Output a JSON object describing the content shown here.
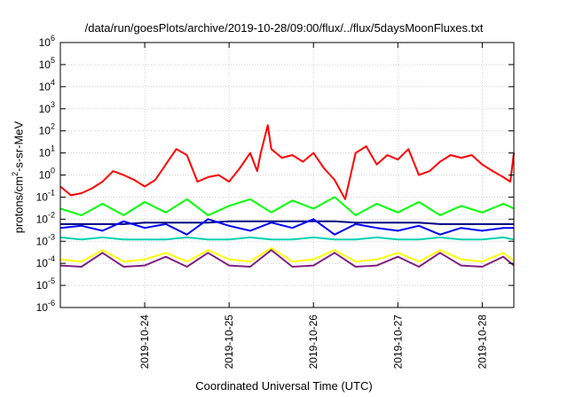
{
  "chart_data": {
    "type": "line",
    "title": "/data/run/goesPlots/archive/2019-10-28/09:00/flux/../flux/5daysMoonFluxes.txt",
    "xlabel": "Coordinated Universal Time (UTC)",
    "ylabel_parts": {
      "pre": "protons/cm",
      "sup": "2",
      "post": "-s-sr-MeV"
    },
    "y_scale": "log",
    "ylim": [
      1e-06,
      1000000.0
    ],
    "y_ticks": [
      {
        "base": "10",
        "exp": "-6"
      },
      {
        "base": "10",
        "exp": "-5"
      },
      {
        "base": "10",
        "exp": "-4"
      },
      {
        "base": "10",
        "exp": "-3"
      },
      {
        "base": "10",
        "exp": "-2"
      },
      {
        "base": "10",
        "exp": "-1"
      },
      {
        "base": "10",
        "exp": "0"
      },
      {
        "base": "10",
        "exp": "1"
      },
      {
        "base": "10",
        "exp": "2"
      },
      {
        "base": "10",
        "exp": "3"
      },
      {
        "base": "10",
        "exp": "4"
      },
      {
        "base": "10",
        "exp": "5"
      },
      {
        "base": "10",
        "exp": "6"
      }
    ],
    "xlim": [
      "2019-10-23T00:00",
      "2019-10-28T09:00"
    ],
    "x_ticks": [
      "2019-10-24",
      "2019-10-25",
      "2019-10-26",
      "2019-10-27",
      "2019-10-28"
    ],
    "grid": true,
    "legend": "none",
    "series": [
      {
        "color": "#ff0000",
        "x": [
          "2019-10-23T00:00",
          "2019-10-23T03:00",
          "2019-10-23T06:00",
          "2019-10-23T09:00",
          "2019-10-23T12:00",
          "2019-10-23T15:00",
          "2019-10-23T18:00",
          "2019-10-23T21:00",
          "2019-10-24T00:00",
          "2019-10-24T03:00",
          "2019-10-24T06:00",
          "2019-10-24T09:00",
          "2019-10-24T12:00",
          "2019-10-24T15:00",
          "2019-10-24T18:00",
          "2019-10-24T21:00",
          "2019-10-25T00:00",
          "2019-10-25T03:00",
          "2019-10-25T06:00",
          "2019-10-25T08:00",
          "2019-10-25T09:00",
          "2019-10-25T11:00",
          "2019-10-25T12:00",
          "2019-10-25T15:00",
          "2019-10-25T18:00",
          "2019-10-25T21:00",
          "2019-10-26T00:00",
          "2019-10-26T03:00",
          "2019-10-26T06:00",
          "2019-10-26T09:00",
          "2019-10-26T12:00",
          "2019-10-26T15:00",
          "2019-10-26T18:00",
          "2019-10-26T21:00",
          "2019-10-27T00:00",
          "2019-10-27T03:00",
          "2019-10-27T06:00",
          "2019-10-27T09:00",
          "2019-10-27T12:00",
          "2019-10-27T15:00",
          "2019-10-27T18:00",
          "2019-10-27T21:00",
          "2019-10-28T00:00",
          "2019-10-28T03:00",
          "2019-10-28T06:00",
          "2019-10-28T08:00",
          "2019-10-28T09:00"
        ],
        "y": [
          0.3,
          0.12,
          0.15,
          0.25,
          0.5,
          1.5,
          1.0,
          0.6,
          0.3,
          0.6,
          3,
          15,
          8,
          0.5,
          0.8,
          1,
          0.5,
          2,
          10,
          1.5,
          10,
          180,
          15,
          6,
          8,
          4,
          10,
          2,
          0.6,
          0.08,
          10,
          20,
          3,
          8,
          5,
          15,
          1,
          1.5,
          4,
          8,
          6,
          8,
          3,
          1.5,
          0.8,
          0.5,
          10
        ]
      },
      {
        "color": "#00ff00",
        "x": [
          "2019-10-23T00:00",
          "2019-10-23T06:00",
          "2019-10-23T12:00",
          "2019-10-23T18:00",
          "2019-10-24T00:00",
          "2019-10-24T06:00",
          "2019-10-24T12:00",
          "2019-10-24T18:00",
          "2019-10-25T00:00",
          "2019-10-25T06:00",
          "2019-10-25T12:00",
          "2019-10-25T18:00",
          "2019-10-26T00:00",
          "2019-10-26T06:00",
          "2019-10-26T12:00",
          "2019-10-26T18:00",
          "2019-10-27T00:00",
          "2019-10-27T06:00",
          "2019-10-27T12:00",
          "2019-10-27T18:00",
          "2019-10-28T00:00",
          "2019-10-28T06:00",
          "2019-10-28T09:00"
        ],
        "y": [
          0.03,
          0.015,
          0.05,
          0.015,
          0.06,
          0.02,
          0.08,
          0.015,
          0.04,
          0.08,
          0.02,
          0.07,
          0.03,
          0.1,
          0.015,
          0.05,
          0.02,
          0.06,
          0.015,
          0.04,
          0.02,
          0.05,
          0.03
        ]
      },
      {
        "color": "#0000ff",
        "x": [
          "2019-10-23T00:00",
          "2019-10-23T06:00",
          "2019-10-23T12:00",
          "2019-10-23T18:00",
          "2019-10-24T00:00",
          "2019-10-24T06:00",
          "2019-10-24T12:00",
          "2019-10-24T18:00",
          "2019-10-25T00:00",
          "2019-10-25T06:00",
          "2019-10-25T12:00",
          "2019-10-25T18:00",
          "2019-10-26T00:00",
          "2019-10-26T06:00",
          "2019-10-26T12:00",
          "2019-10-26T18:00",
          "2019-10-27T00:00",
          "2019-10-27T06:00",
          "2019-10-27T12:00",
          "2019-10-27T18:00",
          "2019-10-28T00:00",
          "2019-10-28T06:00",
          "2019-10-28T09:00"
        ],
        "y": [
          0.004,
          0.005,
          0.003,
          0.008,
          0.004,
          0.006,
          0.002,
          0.01,
          0.005,
          0.003,
          0.007,
          0.004,
          0.01,
          0.002,
          0.006,
          0.004,
          0.003,
          0.005,
          0.002,
          0.004,
          0.003,
          0.004,
          0.004
        ]
      },
      {
        "color": "#00d0b0",
        "x": [
          "2019-10-23T00:00",
          "2019-10-23T06:00",
          "2019-10-23T12:00",
          "2019-10-23T18:00",
          "2019-10-24T00:00",
          "2019-10-24T06:00",
          "2019-10-24T12:00",
          "2019-10-24T18:00",
          "2019-10-25T00:00",
          "2019-10-25T06:00",
          "2019-10-25T12:00",
          "2019-10-25T18:00",
          "2019-10-26T00:00",
          "2019-10-26T06:00",
          "2019-10-26T12:00",
          "2019-10-26T18:00",
          "2019-10-27T00:00",
          "2019-10-27T06:00",
          "2019-10-27T12:00",
          "2019-10-27T18:00",
          "2019-10-28T00:00",
          "2019-10-28T06:00",
          "2019-10-28T09:00"
        ],
        "y": [
          0.0015,
          0.0012,
          0.0015,
          0.0012,
          0.0012,
          0.0012,
          0.0015,
          0.0012,
          0.0012,
          0.0015,
          0.0012,
          0.0012,
          0.0015,
          0.0012,
          0.0012,
          0.0015,
          0.0012,
          0.0012,
          0.0015,
          0.0012,
          0.0012,
          0.0015,
          0.0012
        ]
      },
      {
        "color": "#000080",
        "x": [
          "2019-10-23T00:00",
          "2019-10-23T06:00",
          "2019-10-23T12:00",
          "2019-10-23T18:00",
          "2019-10-24T00:00",
          "2019-10-24T06:00",
          "2019-10-24T12:00",
          "2019-10-24T18:00",
          "2019-10-25T00:00",
          "2019-10-25T06:00",
          "2019-10-25T12:00",
          "2019-10-25T18:00",
          "2019-10-26T00:00",
          "2019-10-26T06:00",
          "2019-10-26T12:00",
          "2019-10-26T18:00",
          "2019-10-27T00:00",
          "2019-10-27T06:00",
          "2019-10-27T12:00",
          "2019-10-27T18:00",
          "2019-10-28T00:00",
          "2019-10-28T06:00",
          "2019-10-28T09:00"
        ],
        "y": [
          0.006,
          0.006,
          0.006,
          0.006,
          0.007,
          0.007,
          0.007,
          0.007,
          0.008,
          0.008,
          0.008,
          0.008,
          0.008,
          0.008,
          0.007,
          0.007,
          0.007,
          0.007,
          0.006,
          0.006,
          0.006,
          0.006,
          0.006
        ]
      },
      {
        "color": "#ffff00",
        "x": [
          "2019-10-23T00:00",
          "2019-10-23T06:00",
          "2019-10-23T12:00",
          "2019-10-23T18:00",
          "2019-10-24T00:00",
          "2019-10-24T06:00",
          "2019-10-24T12:00",
          "2019-10-24T18:00",
          "2019-10-25T00:00",
          "2019-10-25T06:00",
          "2019-10-25T12:00",
          "2019-10-25T18:00",
          "2019-10-26T00:00",
          "2019-10-26T06:00",
          "2019-10-26T12:00",
          "2019-10-26T18:00",
          "2019-10-27T00:00",
          "2019-10-27T06:00",
          "2019-10-27T12:00",
          "2019-10-27T18:00",
          "2019-10-28T00:00",
          "2019-10-28T06:00",
          "2019-10-28T09:00"
        ],
        "y": [
          0.00015,
          0.00012,
          0.0004,
          0.00012,
          0.00015,
          0.0003,
          0.00012,
          0.0004,
          0.00015,
          0.00012,
          0.0005,
          0.00012,
          0.00015,
          0.0004,
          0.00012,
          0.00015,
          0.0003,
          0.00012,
          0.0004,
          0.00015,
          0.00012,
          0.0003,
          0.00013
        ]
      },
      {
        "color": "#802080",
        "x": [
          "2019-10-23T00:00",
          "2019-10-23T06:00",
          "2019-10-23T12:00",
          "2019-10-23T18:00",
          "2019-10-24T00:00",
          "2019-10-24T06:00",
          "2019-10-24T12:00",
          "2019-10-24T18:00",
          "2019-10-25T00:00",
          "2019-10-25T06:00",
          "2019-10-25T12:00",
          "2019-10-25T18:00",
          "2019-10-26T00:00",
          "2019-10-26T06:00",
          "2019-10-26T12:00",
          "2019-10-26T18:00",
          "2019-10-27T00:00",
          "2019-10-27T06:00",
          "2019-10-27T12:00",
          "2019-10-27T18:00",
          "2019-10-28T00:00",
          "2019-10-28T06:00",
          "2019-10-28T09:00"
        ],
        "y": [
          8e-05,
          7e-05,
          0.0003,
          7e-05,
          8e-05,
          0.0002,
          7e-05,
          0.0003,
          8e-05,
          7e-05,
          0.0004,
          7e-05,
          8e-05,
          0.0003,
          7e-05,
          8e-05,
          0.0002,
          7e-05,
          0.0003,
          8e-05,
          7e-05,
          0.0002,
          8e-05
        ]
      }
    ]
  }
}
